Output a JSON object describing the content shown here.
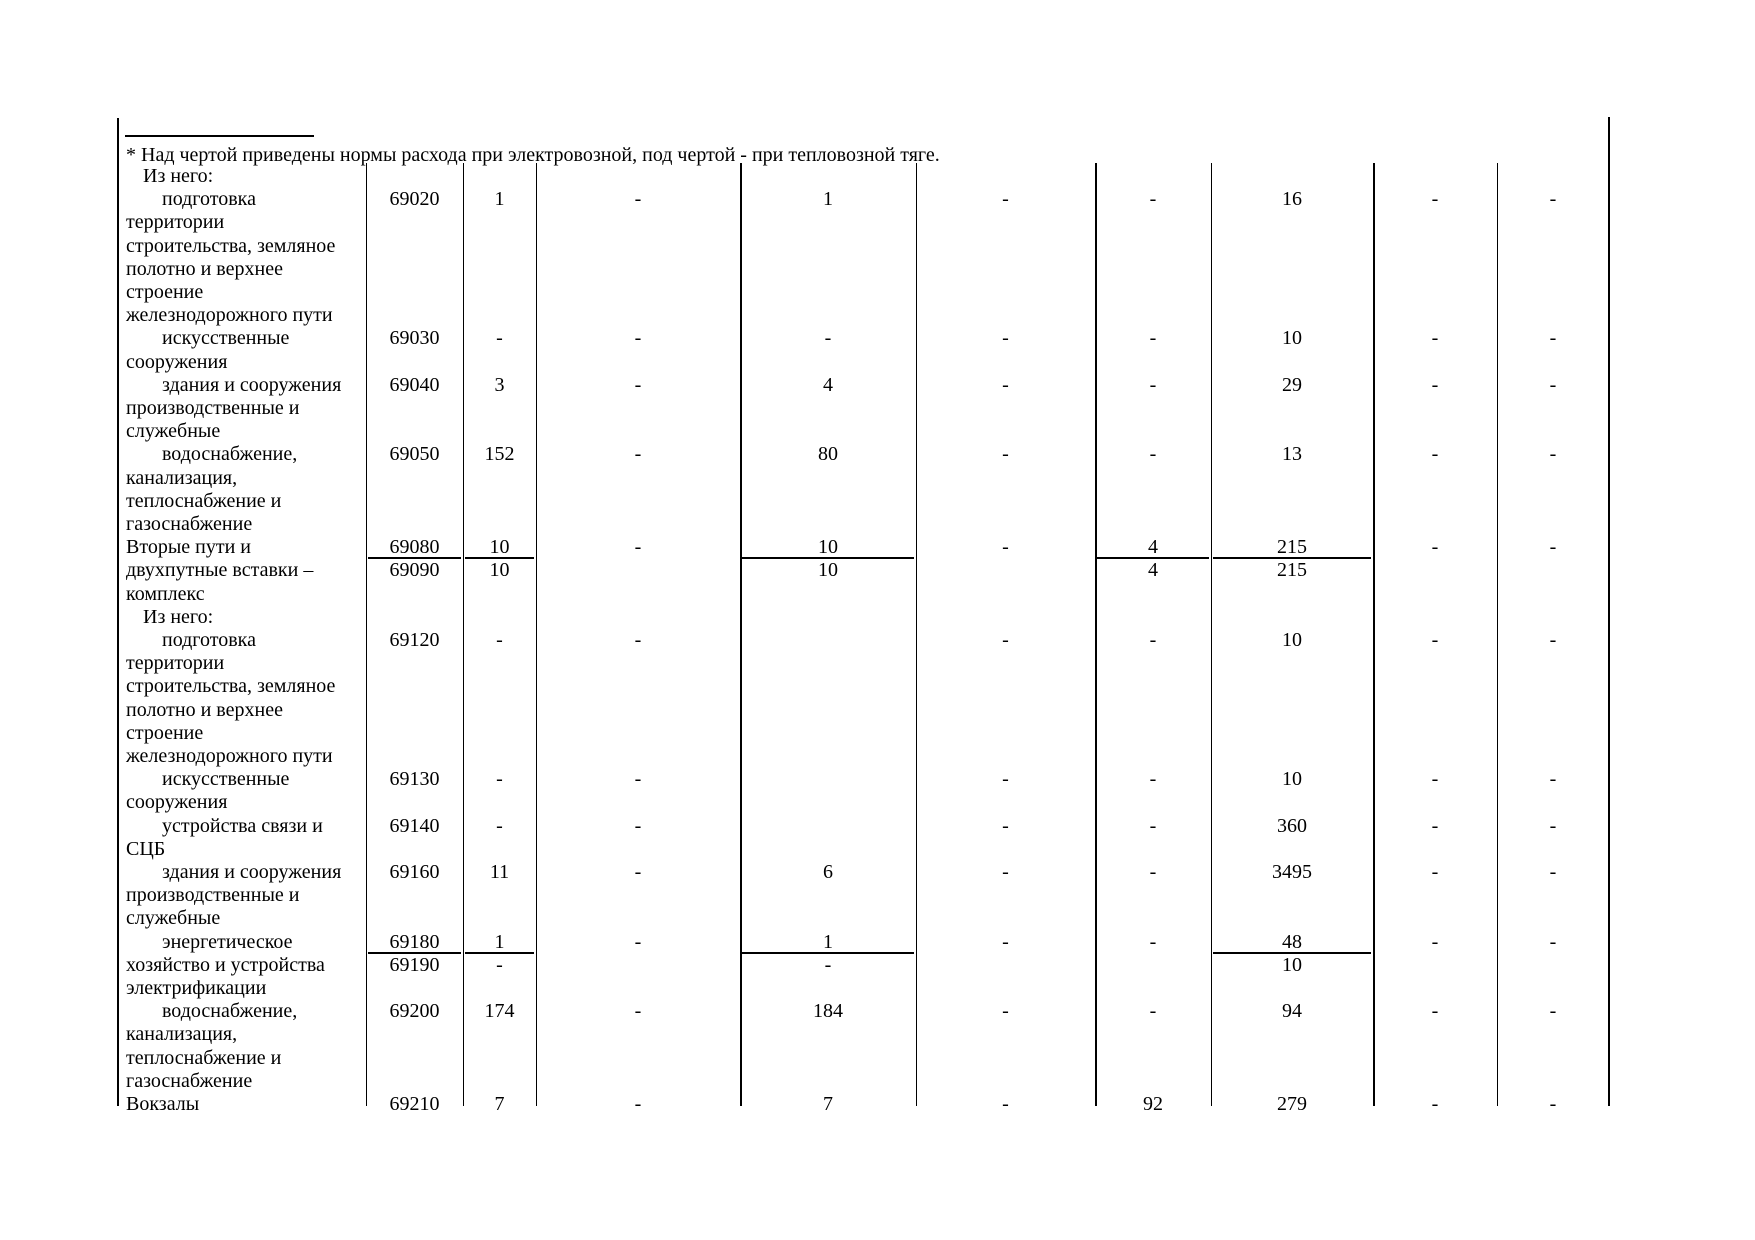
{
  "footnote": {
    "text": "* Над чертой приведены нормы расхода при электровозной, под чертой - при тепловозной тяге."
  },
  "table": {
    "rows": [
      {
        "type": "section",
        "label_lines": [
          "Из него:"
        ]
      },
      {
        "type": "sub",
        "label_lines": [
          "подготовка",
          "территории",
          "строительства, земляное",
          "полотно и верхнее",
          "строение",
          "железнодорожного пути"
        ],
        "code": "69020",
        "values": [
          "1",
          "-",
          "1",
          "-",
          "-",
          "16",
          "-",
          "-"
        ]
      },
      {
        "type": "sub",
        "label_lines": [
          "искусственные",
          "сооружения"
        ],
        "code": "69030",
        "values": [
          "-",
          "-",
          "-",
          "-",
          "-",
          "10",
          "-",
          "-"
        ]
      },
      {
        "type": "sub",
        "label_lines": [
          "здания и сооружения",
          "производственные и",
          "служебные"
        ],
        "code": "69040",
        "values": [
          "3",
          "-",
          "4",
          "-",
          "-",
          "29",
          "-",
          "-"
        ]
      },
      {
        "type": "sub",
        "label_lines": [
          "водоснабжение,",
          "канализация,",
          "теплоснабжение и",
          "газоснабжение"
        ],
        "code": "69050",
        "values": [
          "152",
          "-",
          "80",
          "-",
          "-",
          "13",
          "-",
          "-"
        ]
      },
      {
        "type": "top",
        "label_lines": [
          "Вторые пути и",
          "двухпутные вставки –",
          "комплекс"
        ],
        "code": {
          "over": "69080",
          "under": "69090"
        },
        "values": [
          {
            "over": "10",
            "under": "10"
          },
          "-",
          {
            "over": "10",
            "under": "10"
          },
          "-",
          {
            "over": "4",
            "under": "4"
          },
          {
            "over": "215",
            "under": "215"
          },
          "-",
          "-"
        ]
      },
      {
        "type": "section",
        "label_lines": [
          "Из него:"
        ]
      },
      {
        "type": "sub",
        "label_lines": [
          "подготовка",
          "территории",
          "строительства, земляное",
          "полотно и верхнее",
          "строение",
          "железнодорожного пути"
        ],
        "code": "69120",
        "values": [
          "-",
          "-",
          "",
          "-",
          "-",
          "10",
          "-",
          "-"
        ]
      },
      {
        "type": "sub",
        "label_lines": [
          "искусственные",
          "сооружения"
        ],
        "code": "69130",
        "values": [
          "-",
          "-",
          "",
          "-",
          "-",
          "10",
          "-",
          "-"
        ]
      },
      {
        "type": "sub",
        "label_lines": [
          "устройства связи и",
          "СЦБ"
        ],
        "code": "69140",
        "values": [
          "-",
          "-",
          "",
          "-",
          "-",
          "360",
          "-",
          "-"
        ]
      },
      {
        "type": "sub",
        "label_lines": [
          "здания и сооружения",
          "производственные и",
          "служебные"
        ],
        "code": "69160",
        "values": [
          "11",
          "-",
          "6",
          "-",
          "-",
          "3495",
          "-",
          "-"
        ]
      },
      {
        "type": "sub",
        "label_lines": [
          "энергетическое",
          "хозяйство и устройства",
          "электрификации"
        ],
        "code": {
          "over": "69180",
          "under": "69190"
        },
        "values": [
          {
            "over": "1",
            "under": "-"
          },
          "-",
          {
            "over": "1",
            "under": "-"
          },
          "-",
          "-",
          {
            "over": "48",
            "under": "10"
          },
          "-",
          "-"
        ]
      },
      {
        "type": "sub",
        "label_lines": [
          "водоснабжение,",
          "канализация,",
          "теплоснабжение и",
          "газоснабжение"
        ],
        "code": "69200",
        "values": [
          "174",
          "-",
          "184",
          "-",
          "-",
          "94",
          "-",
          "-"
        ]
      },
      {
        "type": "top",
        "label_lines": [
          "Вокзалы"
        ],
        "code": "69210",
        "values": [
          "7",
          "-",
          "7",
          "-",
          "92",
          "279",
          "-",
          "-"
        ]
      }
    ]
  }
}
